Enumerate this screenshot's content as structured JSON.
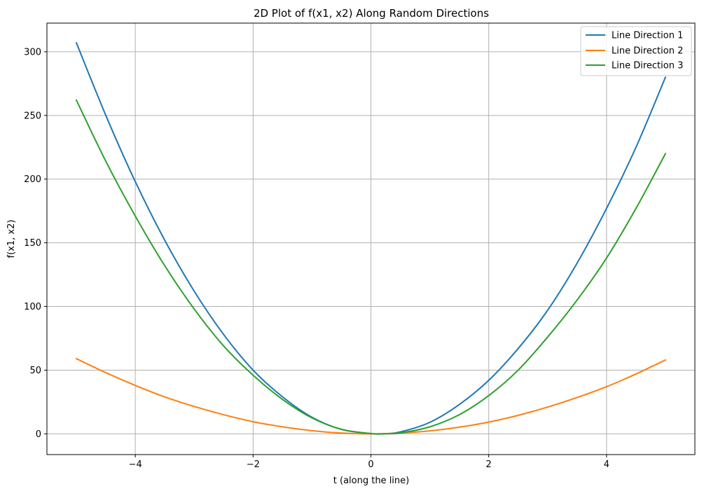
{
  "chart_data": {
    "type": "line",
    "title": "2D Plot of f(x1, x2) Along Random Directions",
    "xlabel": "t (along the line)",
    "ylabel": "f(x1, x2)",
    "xlim": [
      -5.5,
      5.5
    ],
    "ylim": [
      -16.3,
      322.5
    ],
    "xticks": [
      -4,
      -2,
      0,
      2,
      4
    ],
    "xtick_labels": [
      "−4",
      "−2",
      "0",
      "2",
      "4"
    ],
    "yticks": [
      0,
      50,
      100,
      150,
      200,
      250,
      300
    ],
    "ytick_labels": [
      "0",
      "50",
      "100",
      "150",
      "200",
      "250",
      "300"
    ],
    "grid": true,
    "legend_position": "top-right",
    "series": [
      {
        "name": "Line Direction 1",
        "color": "#1f77b4",
        "x": [
          -5.0,
          -4.5,
          -4.0,
          -3.5,
          -3.0,
          -2.5,
          -2.0,
          -1.5,
          -1.0,
          -0.5,
          0.0,
          0.2,
          0.5,
          1.0,
          1.5,
          2.0,
          2.5,
          3.0,
          3.5,
          4.0,
          4.5,
          5.0
        ],
        "y": [
          307,
          250,
          198,
          152,
          112,
          78,
          50,
          29,
          13,
          3.5,
          0.2,
          0,
          1.5,
          9,
          23,
          42,
          67,
          97,
          134,
          177,
          225,
          280
        ]
      },
      {
        "name": "Line Direction 2",
        "color": "#ff7f0e",
        "x": [
          -5.0,
          -4.5,
          -4.0,
          -3.5,
          -3.0,
          -2.5,
          -2.0,
          -1.5,
          -1.0,
          -0.5,
          0.0,
          0.5,
          1.0,
          1.5,
          2.0,
          2.5,
          3.0,
          3.5,
          4.0,
          4.5,
          5.0
        ],
        "y": [
          59,
          48,
          38,
          29,
          21.5,
          15,
          9.5,
          5.5,
          2.5,
          0.6,
          0,
          0.6,
          2.3,
          5.2,
          9.2,
          14.5,
          21,
          28.5,
          37,
          47,
          58
        ]
      },
      {
        "name": "Line Direction 3",
        "color": "#2ca02c",
        "x": [
          -5.0,
          -4.5,
          -4.0,
          -3.5,
          -3.0,
          -2.5,
          -2.0,
          -1.5,
          -1.0,
          -0.5,
          0.0,
          0.2,
          0.5,
          1.0,
          1.5,
          2.0,
          2.5,
          3.0,
          3.5,
          4.0,
          4.5,
          5.0
        ],
        "y": [
          262,
          214,
          171,
          132,
          98,
          69,
          46,
          27,
          12.5,
          3.5,
          0.2,
          0,
          0.7,
          5.5,
          15,
          30,
          50,
          76,
          105,
          138,
          177,
          220
        ]
      }
    ]
  }
}
